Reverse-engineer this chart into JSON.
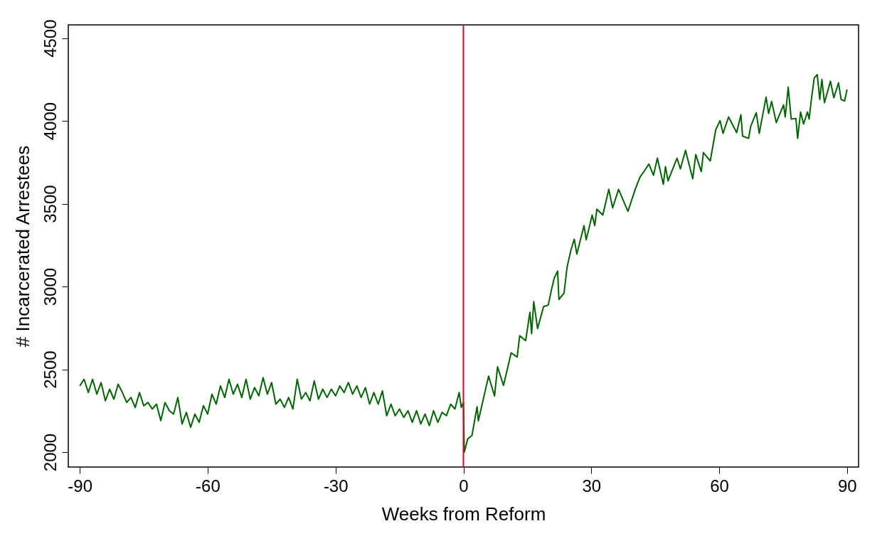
{
  "chart_data": {
    "type": "line",
    "xlabel": "Weeks from Reform",
    "ylabel": "# Incarcerated Arrestees",
    "x": [
      -90,
      -89,
      -88,
      -87,
      -86,
      -85,
      -84,
      -83,
      -82,
      -81,
      -80,
      -79,
      -78,
      -77,
      -76,
      -75,
      -74,
      -73,
      -72,
      -71,
      -70,
      -69,
      -68,
      -67,
      -66,
      -65,
      -64,
      -63,
      -62,
      -61,
      -60,
      -59,
      -58,
      -57,
      -56,
      -55,
      -54,
      -53,
      -52,
      -51,
      -50,
      -49,
      -48,
      -47,
      -46,
      -45,
      -44,
      -43,
      -42,
      -41,
      -40,
      -39,
      -38,
      -37,
      -36,
      -35,
      -34,
      -33,
      -32,
      -31,
      -30,
      -29,
      -28,
      -27,
      -26,
      -25,
      -24,
      -23,
      -22,
      -21,
      -20,
      -19,
      -18,
      -17,
      -16,
      -15,
      -14,
      -13,
      -12,
      -11,
      -10,
      -9,
      -8,
      -7,
      -6,
      -5,
      -4,
      -3,
      -2,
      -1,
      -0.5,
      0,
      0.2,
      1,
      2,
      3.2,
      3.5,
      5.9,
      7.3,
      8,
      9.4,
      11.2,
      12.6,
      13.2,
      14.6,
      15.6,
      16,
      16.5,
      17.4,
      18.8,
      19.9,
      20.7,
      21.3,
      22.1,
      22.4,
      23.6,
      24.3,
      25.2,
      26,
      26.6,
      28.3,
      28.8,
      30.2,
      30.8,
      31.3,
      32.7,
      34.1,
      35,
      36.4,
      38.6,
      40.3,
      41.4,
      42.5,
      43.5,
      44.6,
      45.5,
      46.9,
      47.4,
      48,
      50.1,
      50.9,
      52.1,
      53.8,
      54.5,
      55.8,
      56.3,
      57.9,
      59.2,
      60.2,
      60.9,
      62.2,
      64.1,
      65.1,
      65.5,
      66.9,
      67.4,
      68.7,
      69.4,
      71,
      71.6,
      72.3,
      73.4,
      75.1,
      75.5,
      76.2,
      76.9,
      78,
      78.4,
      79.1,
      79.8,
      80.7,
      81.1,
      81.6,
      82.3,
      83,
      83.6,
      84.1,
      84.7,
      86.1,
      86.9,
      88,
      88.6,
      89.4,
      90
    ],
    "series": [
      {
        "color": "#006400",
        "values": [
          2400,
          2440,
          2360,
          2440,
          2350,
          2420,
          2310,
          2380,
          2320,
          2410,
          2360,
          2300,
          2330,
          2270,
          2360,
          2280,
          2300,
          2260,
          2290,
          2190,
          2300,
          2250,
          2230,
          2330,
          2170,
          2240,
          2150,
          2230,
          2180,
          2280,
          2230,
          2350,
          2290,
          2400,
          2330,
          2440,
          2350,
          2410,
          2330,
          2440,
          2320,
          2390,
          2340,
          2450,
          2350,
          2420,
          2290,
          2320,
          2270,
          2330,
          2260,
          2440,
          2320,
          2360,
          2310,
          2430,
          2320,
          2380,
          2330,
          2380,
          2340,
          2400,
          2360,
          2420,
          2350,
          2400,
          2330,
          2390,
          2290,
          2360,
          2290,
          2370,
          2220,
          2290,
          2220,
          2260,
          2210,
          2250,
          2180,
          2250,
          2170,
          2230,
          2160,
          2250,
          2180,
          2240,
          2220,
          2290,
          2260,
          2360,
          2270,
          2300,
          2000,
          2080,
          2100,
          2274,
          2189,
          2459,
          2339,
          2515,
          2403,
          2600,
          2574,
          2703,
          2673,
          2845,
          2716,
          2909,
          2746,
          2879,
          2888,
          2986,
          3051,
          3093,
          2922,
          2960,
          3115,
          3218,
          3286,
          3196,
          3368,
          3282,
          3432,
          3368,
          3467,
          3432,
          3587,
          3475,
          3587,
          3454,
          3587,
          3660,
          3700,
          3740,
          3672,
          3775,
          3617,
          3724,
          3638,
          3775,
          3711,
          3822,
          3651,
          3797,
          3694,
          3809,
          3758,
          3947,
          4002,
          3925,
          4024,
          3930,
          4037,
          3908,
          3895,
          3968,
          4050,
          3925,
          4144,
          4045,
          4118,
          3990,
          4097,
          4024,
          4204,
          4011,
          4015,
          3895,
          4054,
          3981,
          4054,
          4011,
          4123,
          4260,
          4280,
          4130,
          4250,
          4110,
          4240,
          4140,
          4230,
          4130,
          4120,
          4190
        ]
      }
    ],
    "xlim": [
      -92.7,
      92.7
    ],
    "ylim": [
      1910,
      4580
    ],
    "xticks": [
      -90,
      -60,
      -30,
      0,
      30,
      60,
      90
    ],
    "yticks": [
      2000,
      2500,
      3000,
      3500,
      4000,
      4500
    ],
    "ref_lines": [
      {
        "axis": "x",
        "value": 0,
        "color": "#c8102e"
      }
    ],
    "grid": false
  }
}
